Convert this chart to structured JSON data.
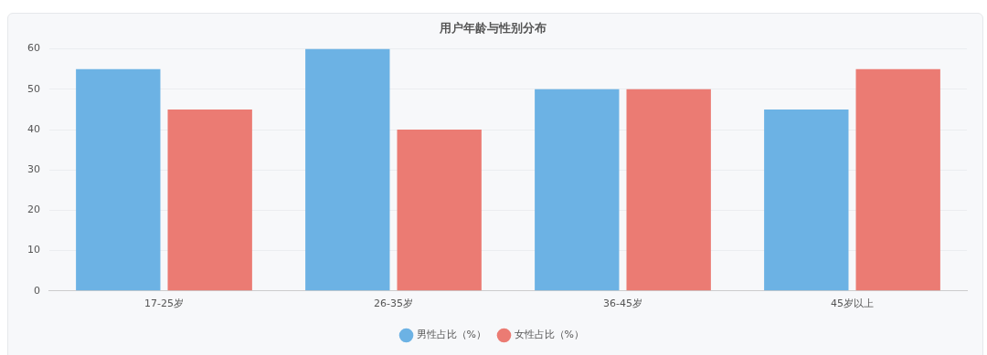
{
  "chart_data": {
    "type": "bar",
    "title": "用户年龄与性别分布",
    "categories": [
      "17-25岁",
      "26-35岁",
      "36-45岁",
      "45岁以上"
    ],
    "series": [
      {
        "name": "男性占比（%）",
        "color": "#6cb2e4",
        "values": [
          55,
          60,
          50,
          45
        ]
      },
      {
        "name": "女性占比（%）",
        "color": "#eb7b73",
        "values": [
          45,
          40,
          50,
          55
        ]
      }
    ],
    "ylim": [
      0,
      60
    ],
    "yticks": [
      0,
      10,
      20,
      30,
      40,
      50,
      60
    ],
    "grid": "y",
    "legend": "bottom"
  }
}
